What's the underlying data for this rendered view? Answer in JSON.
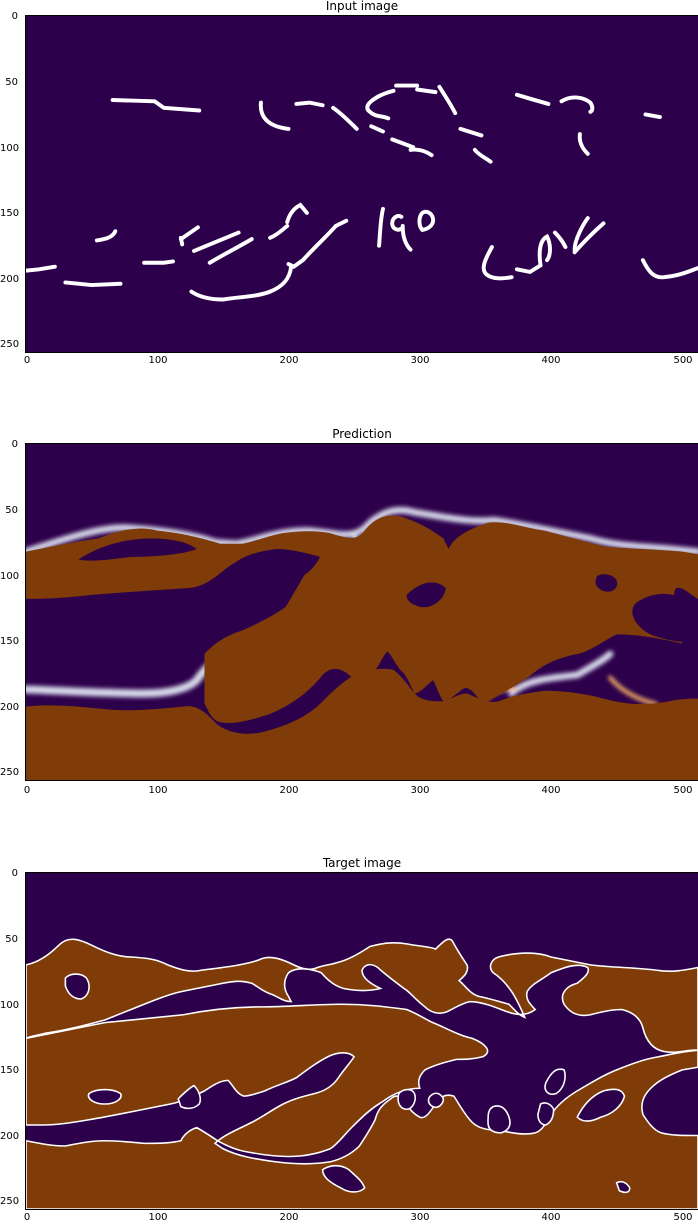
{
  "colors": {
    "background": "#2d004b",
    "fill": "#7f3b08",
    "stroke": "#ffffff",
    "edge_light": "#fdb863",
    "edge_pale": "#d8daeb"
  },
  "axes": {
    "x_ticks": [
      "0",
      "100",
      "200",
      "300",
      "400",
      "500"
    ],
    "y_ticks": [
      "0",
      "50",
      "100",
      "150",
      "200",
      "250"
    ]
  },
  "panels": [
    {
      "id": "input",
      "title": "Input image"
    },
    {
      "id": "prediction",
      "title": "Prediction"
    },
    {
      "id": "target",
      "title": "Target image"
    }
  ]
}
